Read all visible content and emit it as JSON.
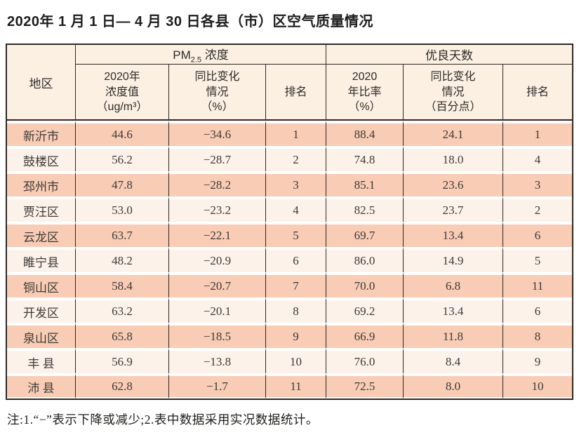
{
  "title": "2020年 1 月 1 日— 4 月 30 日各县（市）区空气质量情况",
  "table": {
    "region_header": "地区",
    "pm_group": {
      "prefix": "PM",
      "sub": "2.5",
      "suffix": " 浓度"
    },
    "good_group": "优良天数",
    "sub_headers": [
      "2020年\n浓度值\n（ug/m³）",
      "同比变化\n情况\n（%）",
      "排名",
      "2020\n年比率\n（%）",
      "同比变化\n情况\n（百分点）",
      "排名"
    ],
    "cell_names": [
      "cell-region",
      "cell-pm-value",
      "cell-pm-change",
      "cell-pm-rank",
      "cell-good-rate",
      "cell-good-change",
      "cell-good-rank"
    ],
    "rows": [
      [
        "新沂市",
        "44.6",
        "−34.6",
        "1",
        "88.4",
        "24.1",
        "1"
      ],
      [
        "鼓楼区",
        "56.2",
        "−28.7",
        "2",
        "74.8",
        "18.0",
        "4"
      ],
      [
        "邳州市",
        "47.8",
        "−28.2",
        "3",
        "85.1",
        "23.6",
        "3"
      ],
      [
        "贾汪区",
        "53.0",
        "−23.2",
        "4",
        "82.5",
        "23.7",
        "2"
      ],
      [
        "云龙区",
        "63.7",
        "−22.1",
        "5",
        "69.7",
        "13.4",
        "6"
      ],
      [
        "睢宁县",
        "48.2",
        "−20.9",
        "6",
        "86.0",
        "14.9",
        "5"
      ],
      [
        "铜山区",
        "58.4",
        "−20.7",
        "7",
        "70.0",
        "6.8",
        "11"
      ],
      [
        "开发区",
        "63.2",
        "−20.1",
        "8",
        "69.2",
        "13.4",
        "6"
      ],
      [
        "泉山区",
        "65.8",
        "−18.5",
        "9",
        "66.9",
        "11.8",
        "8"
      ],
      [
        "丰 县",
        "56.9",
        "−13.8",
        "10",
        "76.0",
        "8.4",
        "9"
      ],
      [
        "沛 县",
        "62.8",
        "−1.7",
        "11",
        "72.5",
        "8.0",
        "10"
      ]
    ]
  },
  "note": "注:1.“−”表示下降或减少;2.表中数据采用实况数据统计。",
  "colors": {
    "row_odd": "#f8ccb5",
    "row_even": "#fdf2ea",
    "header_bg": "#fcf0e3",
    "border": "#2f2824"
  }
}
